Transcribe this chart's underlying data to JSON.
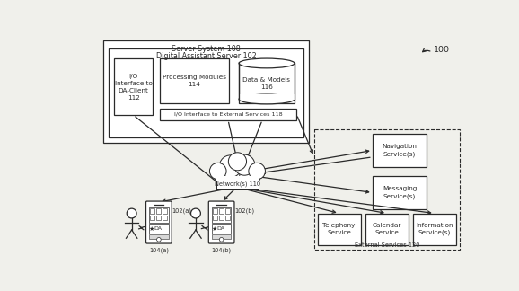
{
  "bg_color": "#f0f0eb",
  "line_color": "#2a2a2a",
  "title": "Server System 108",
  "da_server_title": "Digital Assistant Server 102",
  "io_client_label": "I/O\nInterface to\nDA-Client\n112",
  "proc_mod_label": "Processing Modules\n114",
  "data_models_label": "Data & Models\n116",
  "io_ext_label": "I/O Interface to External Services 118",
  "network_label": "Network(s) 110",
  "nav_label": "Navigation\nService(s)",
  "msg_label": "Messaging\nService(s)",
  "tel_label": "Telephony\nService",
  "cal_label": "Calendar\nService",
  "info_label": "Information\nService(s)",
  "ext_services_label": "External Services 120",
  "device_a_label": "102(a)",
  "device_b_label": "102(b)",
  "user_a_label": "104(a)",
  "user_b_label": "104(b)",
  "ref_label": "100"
}
